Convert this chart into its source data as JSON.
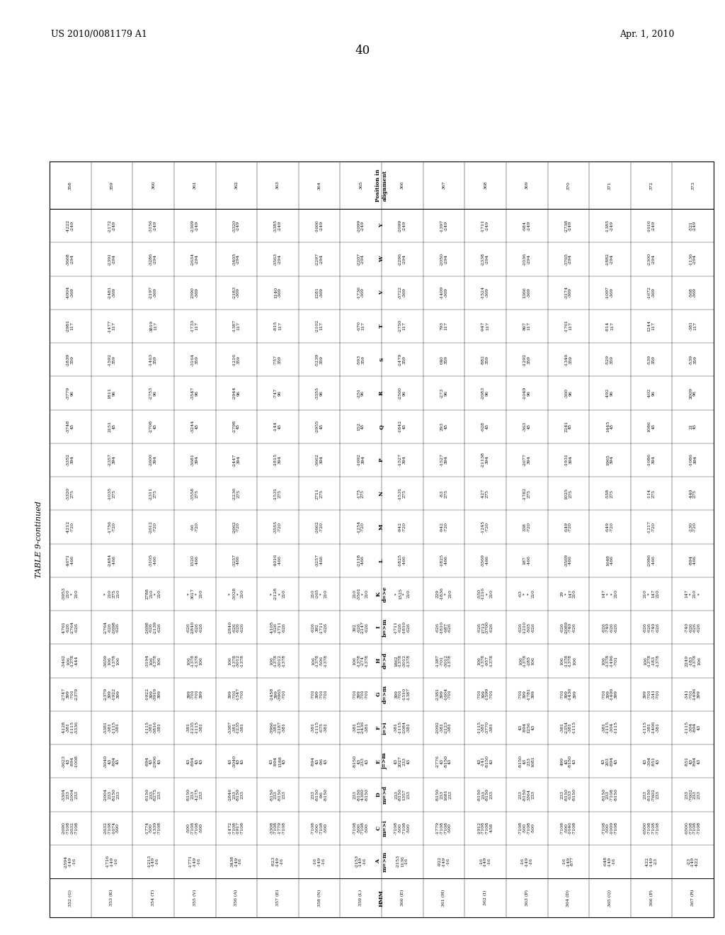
{
  "header_left": "US 2010/0081179 A1",
  "header_right": "Apr. 1, 2010",
  "page_number": "40",
  "table_title": "TABLE 9-continued",
  "col_labels": [
    "HMM",
    "A\nm=>m",
    "C\nm=>i",
    "D\nm=>d",
    "E\nj=>m",
    "F\ni=>i",
    "G\nd=>m",
    "H\nd=>d",
    "I\nb=>m",
    "K\nd=>e",
    "L",
    "M",
    "N",
    "P",
    "Q",
    "R",
    "S",
    "T",
    "V",
    "W",
    "Y",
    "Position in\nalignment"
  ],
  "rows": [
    [
      "352 (G)",
      "-2594\n-149\n-16",
      "-2690\n-7108\n-2632\n-7108",
      "-3304\n233\n-2004\n233",
      "-3623\n43\n-894\n-1008",
      "-4128\n-381\n-1115\n-3336",
      "-2747\n399\n-701\n-2379",
      "-3462\n106\n-1378\n-444",
      "-4761\n-626\n-2764\n-626",
      "-3953\n210\n*\n210",
      "-4671\n-466",
      "-4212\n-720",
      "-3320\n275",
      "-3352\n394",
      "-3748\n45",
      "-3779\n96",
      "-2839\n359",
      "-2981\n117",
      "-4004\n-369",
      "-3668\n-294",
      "-4222\n-249",
      "358"
    ],
    [
      "353 (K)",
      "-1716\n-149\n-16",
      "-2632\n-7108\n-1674\n-500",
      "-2004\n233\n-8150\n233",
      "-3040\n43\n-804\n43",
      "-3381\n-381\n-1115\n-381",
      "-2379\n399\n-1922\n399",
      "-3659\n106\n-1378\n106",
      "-2764\n-626\n-2698\n-626",
      "*\n210\n275\n210",
      "-2484\n-466",
      "-1756\n-720",
      "-1035\n275",
      "-2357\n394",
      "2151\n45",
      "1811\n96",
      "-1592\n359",
      "-1477\n117",
      "-2481\n-369",
      "-2391\n-294",
      "-2172\n-249",
      "359"
    ],
    [
      "354 (T)",
      "-1213\n-149\n-16",
      "-1774\n-500\n-1339\n-7108",
      "-8150\n233\n-8275\n233",
      "-894\n43\n-2906\n43",
      "-1115\n-381\n-3816\n-381",
      "-1922\n399\n-3919\n399",
      "-3194\n106\n-1378\n106",
      "-2698\n-626\n-2139\n-626",
      "2788\n210\n*\n210",
      "-3105\n-466",
      "-2612\n-720",
      "-2311\n275",
      "-2600\n394",
      "-2708\n45",
      "-2753\n96",
      "-1463\n359",
      "3819\n117",
      "-2197\n-369",
      "-3286\n-294",
      "-3156\n-249",
      "360"
    ],
    [
      "355 (V)",
      "-1771\n-149\n-16",
      "-500\n-7108\n-7108\n-500",
      "-8150\n233\n-4275\n233",
      "43\n-894\n43\n43",
      "-381\n-1235\n-1115\n-381",
      "399\n-701\n-701\n399",
      "106\n-1378\n-1378\n106",
      "-626\n-2840\n-626\n-626",
      "*\n3617\n*\n210",
      "1520\n-466",
      "-66\n-720",
      "-3558\n275",
      "-3681\n394",
      "-3244\n45",
      "-3547\n96",
      "-3164\n359",
      "-1733\n117",
      "2390\n-369",
      "-2634\n-294",
      "-2369\n-249",
      "361"
    ],
    [
      "356 (A)",
      "3438\n-149\n-16",
      "-1472\n-7108\n-1917\n-7108",
      "-2846\n233\n-8150\n233",
      "43\n-3040\n43\n43",
      "-3387\n-381\n-1235\n-381",
      "399\n-701\n-1547\n-701",
      "106\n-1378\n-3012\n-1378",
      "-2840\n-626\n-626\n-626",
      "*\n-3028\n*\n210",
      "-3257\n-466",
      "-2662\n-720",
      "-2236\n275",
      "-2447\n394",
      "-2798\n45",
      "-2944\n96",
      "-1216\n359",
      "-1387\n117",
      "-2183\n-369",
      "-3405\n-294",
      "-3320\n-249",
      "362"
    ],
    [
      "357 (E)",
      "-823\n-149\n-16",
      "-3308\n-7108\n-1779\n-7108",
      "-8150\n233\n-8150\n233",
      "43\n-894\n1188\n43",
      "-3966\n-381\n-2187\n-381",
      "-2458\n399\n-3965\n-701",
      "106\n-1378\n-3012\n-1378",
      "-4105\n-626\n-1711\n-626",
      "*\n-2128\n*\n210",
      "-4016\n-466",
      "-3555\n-720",
      "-1531\n275",
      "-1815\n394",
      "-144\n45",
      "-747\n96",
      "-757\n359",
      "-815\n117",
      "1140\n-369",
      "-3563\n-294",
      "-3385\n-249",
      "363"
    ],
    [
      "358 (N)",
      "-16\n-149\n-16",
      "-7108\n-500\n-7108\n-500",
      "233\n-8150\n-96\n-8150",
      "-894\n43\n-96\n43",
      "-381\n-1115\n-675\n-381",
      "-701\n399\n-701\n-701",
      "106\n-1378\n-506\n-1378",
      "-626\n392\n-1711\n-626",
      "210\n-265\n*\n210",
      "-3257\n-466",
      "-2662\n-720",
      "2711\n275",
      "-3662\n394",
      "-2955\n45",
      "-3355\n96",
      "-5239\n359",
      "-2102\n117",
      "1281\n-369",
      "-2297\n-294",
      "-1666\n-249",
      "364"
    ],
    [
      "359 (L)",
      "-2153\n-149\n-16",
      "-7108\n-500\n-7108\n-500",
      "233\n-8150\n-4360\n-8150",
      "-8150\n43\n233\n43",
      "-381\n-1115\n-2436\n-381",
      "-701\n399\n-701\n-701",
      "106\n-1378\n-274\n-1378",
      "392\n-626\n-2147\n-626",
      "210\n-3561\n*\n210",
      "-2118\n-466",
      "-1254\n-720",
      "-175\n275",
      "-1692\n394",
      "152\n45",
      "-251\n96",
      "-593\n359",
      "-670\n117",
      "-1736\n-369",
      "-2207\n-294",
      "-2099\n-249",
      "365"
    ],
    [
      "360 (E)",
      "-2153\n1136\n-16",
      "-7108\n-500\n-7108\n-500",
      "233\n-8150\n1357\n233",
      "43\n2027\n233\n43",
      "-381\n-1115\n-2084\n-381",
      "399\n-701\n-1510\n-1387",
      "1862\n-1378\n-3012\n-1378",
      "-1711\n-626\n-1810\n-626",
      "*\n1525\n*\n210",
      "-1825\n-466",
      "-942\n-720",
      "-1531\n275",
      "-1527\n394",
      "-1842\n45",
      "-2560\n96",
      "-2479\n359",
      "-2750\n117",
      "-3722\n-369",
      "-2296\n-294",
      "-2099\n-249",
      "366"
    ],
    [
      "361 (H)",
      "-922\n-149\n-16",
      "-1779\n-7108\n-7108\n-500",
      "-8150\n233\n1681\n233",
      "-2776\n43\n-8150\n43",
      "-2092\n-381\n-2123\n-381",
      "-2381\n399\n-1604\n-701",
      "-1387\n-701\n-3012\n-1378",
      "-626\n-1810\n-687\n-626",
      "229\n-1836\n*\n210",
      "-1825\n-466",
      "-942\n-720",
      "-83\n275",
      "-1527\n394",
      "293\n45",
      "-273\n96",
      "640\n359",
      "793\n117",
      "-1409\n-369",
      "-2050\n-294",
      "-1397\n-249",
      "367"
    ],
    [
      "362 (I)",
      "-16\n-149\n-16",
      "-1912\n-7108\n-7108\n-458",
      "-8150\n233\n-8150\n233",
      "43\n-141\n-8150\n43",
      "-1115\n-381\n-3770\n-381",
      "-701\n399\n-1599\n-701",
      "106\n-1378\n-957\n-1378",
      "-626\n1712\n-3700\n-626",
      "-550\n-1216\n*\n210",
      "-3569\n-466",
      "-1245\n-720",
      "-427\n275",
      "-21138\n394",
      "-628\n45",
      "-2083\n96",
      "-882\n359",
      "-947\n117",
      "-1524\n-369",
      "-2338\n-294",
      "-1711\n-249",
      "368"
    ],
    [
      "363 (P)",
      "-16\n-149\n-16",
      "-7108\n-500\n-7108\n-500",
      "233\n-8150\n3364\n233",
      "-8150\n43\n233\n1681",
      "43\n-894\n1256\n43",
      "-701\n399\n-1781\n399",
      "106\n-1378\n-285\n106",
      "-626\n-1210\n-505\n-626",
      "-63\n*\n*\n210",
      "187\n-466",
      "338\n-720",
      "-1782\n275",
      "-2677\n394",
      "-363\n45",
      "-1049\n96",
      "-1292\n359",
      "867\n117",
      "1366\n-369",
      "-1036\n-294",
      "-684\n-249",
      "369"
    ],
    [
      "364 (D)",
      "-16\n-149\n-877",
      "-7108\n-500\n-1646\n-7108",
      "233\n-8150\n-633\n-8150",
      "499\n43\n-8150\n43",
      "-381\n-2354\n-381\n-1115",
      "-701\n399\n-1436\n399",
      "106\n-1378\n-1378\n106",
      "-626\n-2089\n-740\n-626",
      "29\n*\n147\n210",
      "-3569\n-466",
      "-649\n-720",
      "1025\n275",
      "-1931\n394",
      "2241\n45",
      "-360\n96",
      "-1346\n359",
      "-1761\n117",
      "-3174\n-369",
      "-3765\n-294",
      "-2738\n-249",
      "370"
    ],
    [
      "365 (Q)",
      "-648\n-149\n-16",
      "-7108\n-500\n-1009\n-7108",
      "-8150\n233\n-7108\n-8150",
      "43\n203\n-894\n43",
      "-381\n-1115\n-304\n-1115",
      "-701\n399\n-1406\n399",
      "106\n-1378\n-1496\n-701",
      "-626\n-740\n-626\n-626",
      "147\n*\n*\n210",
      "1648\n-466",
      "-649\n-720",
      "-558\n275",
      "1965\n394",
      "1445\n45",
      "-492\n96",
      "-529\n359",
      "-814\n117",
      "-1097\n-369",
      "-1882\n-294",
      "-1385\n-249",
      "371"
    ],
    [
      "366 (P)",
      "-422\n-149\n-23",
      "-6500\n-7108\n-7108\n-7108",
      "233\n-8150\n-7602\n233",
      "43\n-304\n-851\n43",
      "-1115\n-381\n-1406\n-381",
      "399\n-701\n-341\n-701",
      "106\n-1378\n-183\n-1378",
      "-626\n-626\n-740\n-626",
      "210\n*\n147\n210",
      "-2086\n-466",
      "-1217\n-720",
      "-114\n275",
      "-1086\n394",
      "1086\n45",
      "-402\n96",
      "-539\n359",
      "1244\n117",
      "-1672\n-369",
      "-2300\n-294",
      "-1616\n-249",
      "372"
    ],
    [
      "367 (R)",
      "-23\n-149\n-422",
      "-6500\n-7108\n-7108\n-7108",
      "233\n-7602\n233\n233",
      "-851\n43\n-894\n43",
      "-1115\n-304\n-894\n43",
      "-341\n-701\n-1496\n399",
      "2249\n-183\n-1378\n106",
      "-740\n-626\n-626\n-626",
      "147\n*\n210\n*",
      "-894\n-466",
      "-230\n-720",
      "-440\n275",
      "-1086\n394",
      "21\n45",
      "2009\n96",
      "-539\n359",
      "-381\n117",
      "-568\n-369",
      "-1136\n-294",
      "-521\n-249",
      "373"
    ]
  ]
}
